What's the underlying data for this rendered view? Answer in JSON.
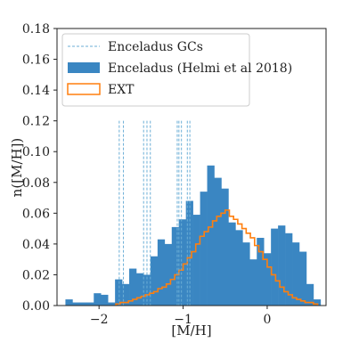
{
  "chart_data": {
    "type": "bar",
    "xlabel": "[M/H]",
    "ylabel": "n([M/H])",
    "xlim": [
      -2.5,
      0.7
    ],
    "ylim": [
      0,
      0.18
    ],
    "xticks": [
      -2,
      -1,
      0
    ],
    "xtick_labels": [
      "−2",
      "−1",
      "0"
    ],
    "yticks": [
      0,
      0.02,
      0.04,
      0.06,
      0.08,
      0.1,
      0.12,
      0.14,
      0.16,
      0.18
    ],
    "ytick_labels": [
      "0.00",
      "0.02",
      "0.04",
      "0.06",
      "0.08",
      "0.10",
      "0.12",
      "0.14",
      "0.16",
      "0.18"
    ],
    "legend_position": "top-left",
    "series": [
      {
        "name": "Enceladus GCs",
        "kind": "vlines",
        "color": "#6baed6",
        "x": [
          -1.76,
          -1.71,
          -1.47,
          -1.43,
          -1.39,
          -1.07,
          -1.05,
          -1.02,
          -0.95,
          -0.92
        ]
      },
      {
        "name": "Enceladus (Helmi et al 2018)",
        "kind": "hist",
        "color": "#3a86c2",
        "bin_start": -2.4,
        "bin_width": 0.0843,
        "values": [
          0.004,
          0.002,
          0.002,
          0.002,
          0.008,
          0.007,
          0.002,
          0.017,
          0.014,
          0.024,
          0.021,
          0.02,
          0.032,
          0.043,
          0.04,
          0.051,
          0.056,
          0.068,
          0.059,
          0.074,
          0.091,
          0.083,
          0.076,
          0.054,
          0.049,
          0.041,
          0.03,
          0.044,
          0.034,
          0.05,
          0.052,
          0.047,
          0.041,
          0.035,
          0.014,
          0.004
        ]
      },
      {
        "name": "EXT",
        "kind": "step",
        "color": "#ff7f0e",
        "bin_start": -1.8,
        "bin_width": 0.05,
        "values": [
          0.001,
          0.002,
          0.002,
          0.003,
          0.004,
          0.005,
          0.006,
          0.007,
          0.008,
          0.009,
          0.011,
          0.012,
          0.014,
          0.017,
          0.02,
          0.023,
          0.027,
          0.031,
          0.035,
          0.04,
          0.045,
          0.048,
          0.051,
          0.055,
          0.058,
          0.06,
          0.062,
          0.058,
          0.056,
          0.053,
          0.05,
          0.047,
          0.044,
          0.039,
          0.035,
          0.03,
          0.025,
          0.02,
          0.016,
          0.012,
          0.009,
          0.007,
          0.005,
          0.004,
          0.003,
          0.002,
          0.002,
          0.001
        ]
      }
    ]
  }
}
